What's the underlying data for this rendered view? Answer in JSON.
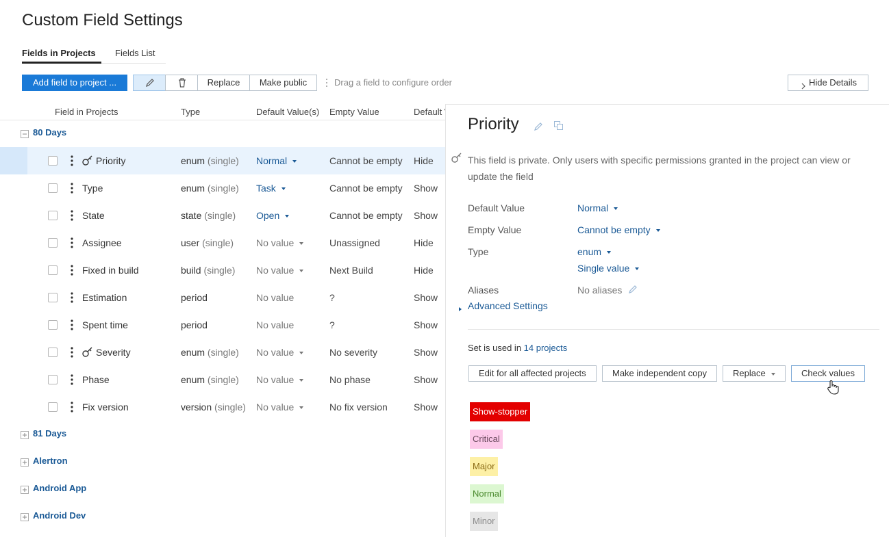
{
  "header": {
    "title": "Custom Field Settings"
  },
  "tabs": [
    {
      "label": "Fields in Projects",
      "active": true
    },
    {
      "label": "Fields List",
      "active": false
    }
  ],
  "toolbar": {
    "add": "Add field to project ...",
    "replace": "Replace",
    "make_public": "Make public",
    "hint": "Drag a field to configure order",
    "hide_details": "Hide Details"
  },
  "table": {
    "columns": [
      "Field in Projects",
      "Type",
      "Default Value(s)",
      "Empty Value",
      "Default V"
    ],
    "groups": [
      {
        "name": "80 Days",
        "expanded": true,
        "rows": [
          {
            "name": "Priority",
            "private": true,
            "selected": true,
            "type": "enum",
            "type_note": "(single)",
            "default": "Normal",
            "default_link": true,
            "default_dropdown": true,
            "empty": "Cannot be empty",
            "visibility": "Hide"
          },
          {
            "name": "Type",
            "private": false,
            "selected": false,
            "type": "enum",
            "type_note": "(single)",
            "default": "Task",
            "default_link": true,
            "default_dropdown": true,
            "empty": "Cannot be empty",
            "visibility": "Show"
          },
          {
            "name": "State",
            "private": false,
            "selected": false,
            "type": "state",
            "type_note": "(single)",
            "default": "Open",
            "default_link": true,
            "default_dropdown": true,
            "empty": "Cannot be empty",
            "visibility": "Show"
          },
          {
            "name": "Assignee",
            "private": false,
            "selected": false,
            "type": "user",
            "type_note": "(single)",
            "default": "No value",
            "default_link": false,
            "default_dropdown": true,
            "empty": "Unassigned",
            "visibility": "Hide"
          },
          {
            "name": "Fixed in build",
            "private": false,
            "selected": false,
            "type": "build",
            "type_note": "(single)",
            "default": "No value",
            "default_link": false,
            "default_dropdown": true,
            "empty": "Next Build",
            "visibility": "Hide"
          },
          {
            "name": "Estimation",
            "private": false,
            "selected": false,
            "type": "period",
            "default": "No value",
            "default_link": false,
            "default_dropdown": false,
            "empty": "?",
            "visibility": "Show"
          },
          {
            "name": "Spent time",
            "private": false,
            "selected": false,
            "type": "period",
            "default": "No value",
            "default_link": false,
            "default_dropdown": false,
            "empty": "?",
            "visibility": "Show"
          },
          {
            "name": "Severity",
            "private": true,
            "selected": false,
            "type": "enum",
            "type_note": "(single)",
            "default": "No value",
            "default_link": false,
            "default_dropdown": true,
            "empty": "No severity",
            "visibility": "Show"
          },
          {
            "name": "Phase",
            "private": false,
            "selected": false,
            "type": "enum",
            "type_note": "(single)",
            "default": "No value",
            "default_link": false,
            "default_dropdown": true,
            "empty": "No phase",
            "visibility": "Show"
          },
          {
            "name": "Fix version",
            "private": false,
            "selected": false,
            "type": "version",
            "type_note": "(single)",
            "default": "No value",
            "default_link": false,
            "default_dropdown": true,
            "empty": "No fix version",
            "visibility": "Show"
          }
        ]
      },
      {
        "name": "81 Days",
        "expanded": false
      },
      {
        "name": "Alertron",
        "expanded": false
      },
      {
        "name": "Android App",
        "expanded": false
      },
      {
        "name": "Android Dev",
        "expanded": false
      }
    ]
  },
  "details": {
    "title": "Priority",
    "private_note": "This field is private. Only users with specific permissions granted in the project can view or update the field",
    "properties": [
      {
        "label": "Default Value",
        "values": [
          {
            "text": "Normal",
            "link": true,
            "dropdown": true
          }
        ]
      },
      {
        "label": "Empty Value",
        "values": [
          {
            "text": "Cannot be empty",
            "link": true,
            "dropdown": true
          }
        ]
      },
      {
        "label": "Type",
        "values": [
          {
            "text": "enum",
            "link": true,
            "dropdown": true
          },
          {
            "text": "Single value",
            "link": true,
            "dropdown": true
          }
        ]
      },
      {
        "label": "Aliases",
        "values": [
          {
            "text": "No aliases",
            "link": false,
            "dropdown": false,
            "editable": true
          }
        ]
      }
    ],
    "advanced": "Advanced Settings",
    "usage": {
      "prefix": "Set is used in",
      "link": "14 projects"
    },
    "buttons": [
      {
        "label": "Edit for all affected projects",
        "dropdown": false
      },
      {
        "label": "Make independent copy",
        "dropdown": false
      },
      {
        "label": "Replace",
        "dropdown": true
      },
      {
        "label": "Check values",
        "dropdown": false,
        "hover": true
      }
    ],
    "values": [
      {
        "name": "Show-stopper",
        "background": "#e30000",
        "color": "#ffffff"
      },
      {
        "name": "Critical",
        "background": "#fcc9e9",
        "color": "#6b4a5e"
      },
      {
        "name": "Major",
        "background": "#fdf0a6",
        "color": "#8a6a14"
      },
      {
        "name": "Normal",
        "background": "#dcf7d1",
        "color": "#4a8a2e"
      },
      {
        "name": "Minor",
        "background": "#e6e6e6",
        "color": "#8a8a8a"
      }
    ]
  }
}
